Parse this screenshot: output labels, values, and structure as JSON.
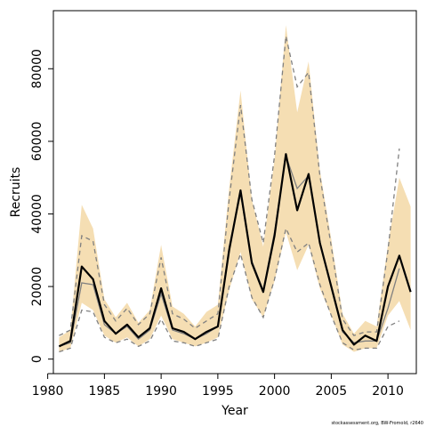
{
  "chart_data": {
    "type": "line",
    "title": "",
    "xlabel": "Year",
    "ylabel": "Recruits",
    "xlim": [
      1980.5,
      2012.5
    ],
    "ylim": [
      -4000,
      96000
    ],
    "xticks": [
      1980,
      1985,
      1990,
      1995,
      2000,
      2005,
      2010
    ],
    "xtick_labels": [
      "1980",
      "1985",
      "1990",
      "1995",
      "2000",
      "2005",
      "2010"
    ],
    "yticks": [
      0,
      20000,
      40000,
      60000,
      80000
    ],
    "ytick_labels": [
      "0",
      "20000",
      "40000",
      "60000",
      "80000"
    ],
    "grid": false,
    "legend": "none",
    "credit": "stockassessment.org, BW-Fromold, r2640",
    "colors": {
      "band": "#f5deb3",
      "estimate": "#000000",
      "comparison": "#808080"
    },
    "years": [
      1981,
      1982,
      1983,
      1984,
      1985,
      1986,
      1987,
      1988,
      1989,
      1990,
      1991,
      1992,
      1993,
      1994,
      1995,
      1996,
      1997,
      1998,
      1999,
      2000,
      2001,
      2002,
      2003,
      2004,
      2005,
      2006,
      2007,
      2008,
      2009,
      2010,
      2011,
      2012
    ],
    "series": [
      {
        "role": "estimate",
        "values": [
          3500,
          5000,
          25500,
          22000,
          10500,
          7000,
          9500,
          6000,
          8500,
          19500,
          8500,
          7500,
          5500,
          7500,
          9000,
          30000,
          46500,
          26500,
          18500,
          34000,
          56500,
          41000,
          51000,
          32000,
          20000,
          8000,
          4000,
          6500,
          5000,
          20000,
          28500,
          18500
        ]
      },
      {
        "role": "band-upper",
        "values": [
          6000,
          8000,
          42500,
          36000,
          16500,
          11500,
          15500,
          10000,
          13500,
          31500,
          14500,
          12500,
          9000,
          13000,
          15000,
          47000,
          74000,
          44000,
          31000,
          55000,
          92000,
          68000,
          82000,
          52000,
          33000,
          12500,
          7000,
          10500,
          9000,
          31500,
          50000,
          42000
        ]
      },
      {
        "role": "band-lower",
        "values": [
          2000,
          3000,
          15500,
          13500,
          6500,
          4500,
          6000,
          3500,
          5500,
          12000,
          5500,
          4500,
          3500,
          4500,
          6000,
          19000,
          29500,
          16500,
          11500,
          21500,
          35000,
          24500,
          31500,
          19500,
          12000,
          4000,
          2000,
          3000,
          3000,
          12000,
          16000,
          8000
        ]
      },
      {
        "role": "comparison-estimate",
        "values": [
          3500,
          4500,
          21000,
          20500,
          9500,
          7000,
          9000,
          5500,
          8000,
          18000,
          8000,
          7000,
          5500,
          7000,
          9000,
          31000,
          45500,
          27000,
          19000,
          35000,
          56000,
          47000,
          50500,
          32000,
          19500,
          7500,
          4500,
          5000,
          5000,
          14000,
          25000,
          null
        ]
      },
      {
        "role": "comparison-upper",
        "values": [
          6500,
          8000,
          34000,
          32500,
          15000,
          10500,
          14000,
          9500,
          12500,
          28000,
          12500,
          11000,
          8500,
          10500,
          12500,
          44000,
          70000,
          44000,
          32000,
          56000,
          89000,
          75000,
          79000,
          50500,
          31000,
          11000,
          6500,
          7500,
          7500,
          30000,
          58000,
          null
        ]
      },
      {
        "role": "comparison-lower",
        "values": [
          2000,
          3000,
          13500,
          13000,
          6000,
          4500,
          5500,
          3500,
          5000,
          11000,
          5000,
          4500,
          3500,
          4500,
          5500,
          20000,
          29000,
          17000,
          11500,
          22000,
          36000,
          29500,
          32000,
          20500,
          12000,
          4500,
          2500,
          3000,
          3000,
          9000,
          10500,
          null
        ]
      }
    ]
  }
}
